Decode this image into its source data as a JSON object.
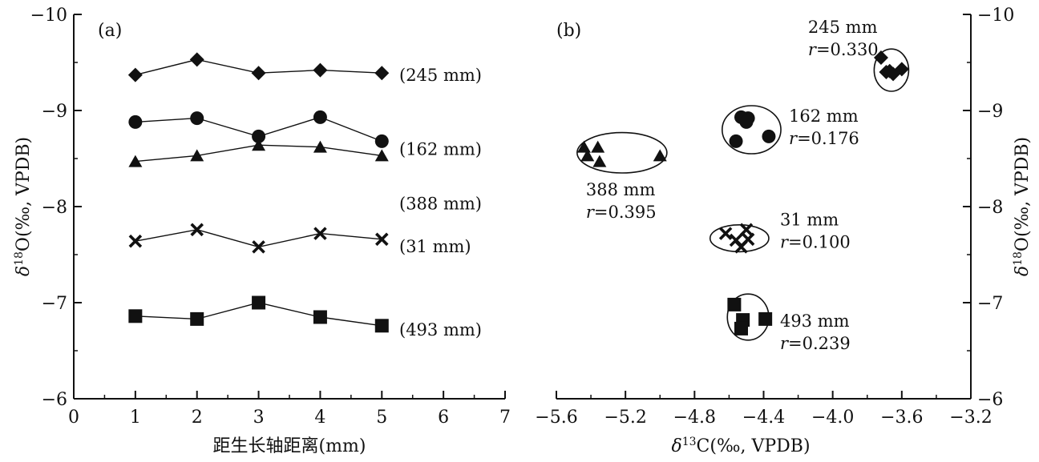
{
  "chart_data": [
    {
      "type": "line",
      "panel_label": "(a)",
      "xlabel": "距生长轴距离(mm)",
      "ylabel": "δ18O(‰, VPDB)",
      "ylabel_parts": {
        "symbol": "δ",
        "sup": "18",
        "rest": "O(‰, VPDB)"
      },
      "xlim": [
        0,
        7
      ],
      "ylim": [
        -6,
        -10
      ],
      "y_axis_reversed": true,
      "xticks": [
        "0",
        "1",
        "2",
        "3",
        "4",
        "5",
        "6",
        "7"
      ],
      "yticks": [
        "−10",
        "−9",
        "−8",
        "−7",
        "−6"
      ],
      "x": [
        1,
        2,
        3,
        4,
        5
      ],
      "series": [
        {
          "name": "(245 mm)",
          "marker": "diamond",
          "values": [
            -9.37,
            -9.53,
            -9.39,
            -9.42,
            -9.39
          ]
        },
        {
          "name": "(162 mm)",
          "marker": "circle",
          "values": [
            -8.88,
            -8.92,
            -8.73,
            -8.93,
            -8.68
          ]
        },
        {
          "name": "(388 mm)",
          "marker": "triangle",
          "values": [
            -8.47,
            -8.53,
            -8.64,
            -8.62,
            -8.53
          ]
        },
        {
          "name": "(31 mm)",
          "marker": "x",
          "values": [
            -7.64,
            -7.76,
            -7.58,
            -7.72,
            -7.66
          ]
        },
        {
          "name": "(493 mm)",
          "marker": "square",
          "values": [
            -6.86,
            -6.83,
            -7.0,
            -6.85,
            -6.76
          ]
        }
      ]
    },
    {
      "type": "scatter",
      "panel_label": "(b)",
      "xlabel": "δ13C(‰, VPDB)",
      "xlabel_parts": {
        "symbol": "δ",
        "sup": "13",
        "rest": "C(‰, VPDB)"
      },
      "ylabel": "δ18O(‰, VPDB)",
      "ylabel_parts": {
        "symbol": "δ",
        "sup": "18",
        "rest": "O(‰, VPDB)"
      },
      "xlim": [
        -5.6,
        -3.2
      ],
      "ylim": [
        -6,
        -10
      ],
      "y_axis_reversed": true,
      "y_axis_side": "right",
      "xticks": [
        "−5.6",
        "−5.2",
        "−4.8",
        "−4.4",
        "−4.0",
        "−3.6",
        "−3.2"
      ],
      "yticks": [
        "−10",
        "−9",
        "−8",
        "−7",
        "−6"
      ],
      "groups": [
        {
          "name": "245 mm",
          "r_label": "r",
          "r_value": "=0.330",
          "marker": "diamond",
          "points": [
            [
              -3.72,
              -9.55
            ],
            [
              -3.69,
              -9.4
            ],
            [
              -3.65,
              -9.38
            ],
            [
              -3.6,
              -9.43
            ],
            [
              -3.67,
              -9.41
            ]
          ],
          "ellipse": {
            "cx": -3.66,
            "cy": -9.42,
            "rx": 0.1,
            "ry": 0.22
          }
        },
        {
          "name": "162 mm",
          "r_label": "r",
          "r_value": "=0.176",
          "marker": "circle",
          "points": [
            [
              -4.53,
              -8.93
            ],
            [
              -4.49,
              -8.92
            ],
            [
              -4.5,
              -8.88
            ],
            [
              -4.56,
              -8.68
            ],
            [
              -4.37,
              -8.73
            ]
          ],
          "ellipse": {
            "cx": -4.47,
            "cy": -8.8,
            "rx": 0.17,
            "ry": 0.25
          }
        },
        {
          "name": "388 mm",
          "r_label": "r",
          "r_value": "=0.395",
          "marker": "triangle",
          "points": [
            [
              -5.44,
              -8.62
            ],
            [
              -5.36,
              -8.62
            ],
            [
              -5.42,
              -8.53
            ],
            [
              -5.35,
              -8.47
            ],
            [
              -5.0,
              -8.53
            ]
          ],
          "ellipse": {
            "cx": -5.22,
            "cy": -8.56,
            "rx": 0.26,
            "ry": 0.21
          }
        },
        {
          "name": "31 mm",
          "r_label": "r",
          "r_value": "=0.100",
          "marker": "x",
          "points": [
            [
              -4.62,
              -7.72
            ],
            [
              -4.56,
              -7.65
            ],
            [
              -4.5,
              -7.76
            ],
            [
              -4.53,
              -7.58
            ],
            [
              -4.49,
              -7.66
            ]
          ],
          "ellipse": {
            "cx": -4.54,
            "cy": -7.67,
            "rx": 0.17,
            "ry": 0.14
          }
        },
        {
          "name": "493 mm",
          "r_label": "r",
          "r_value": "=0.239",
          "marker": "square",
          "points": [
            [
              -4.57,
              -6.98
            ],
            [
              -4.52,
              -6.82
            ],
            [
              -4.39,
              -6.83
            ],
            [
              -4.53,
              -6.73
            ]
          ],
          "ellipse": {
            "cx": -4.49,
            "cy": -6.85,
            "rx": 0.12,
            "ry": 0.24
          }
        }
      ]
    }
  ]
}
